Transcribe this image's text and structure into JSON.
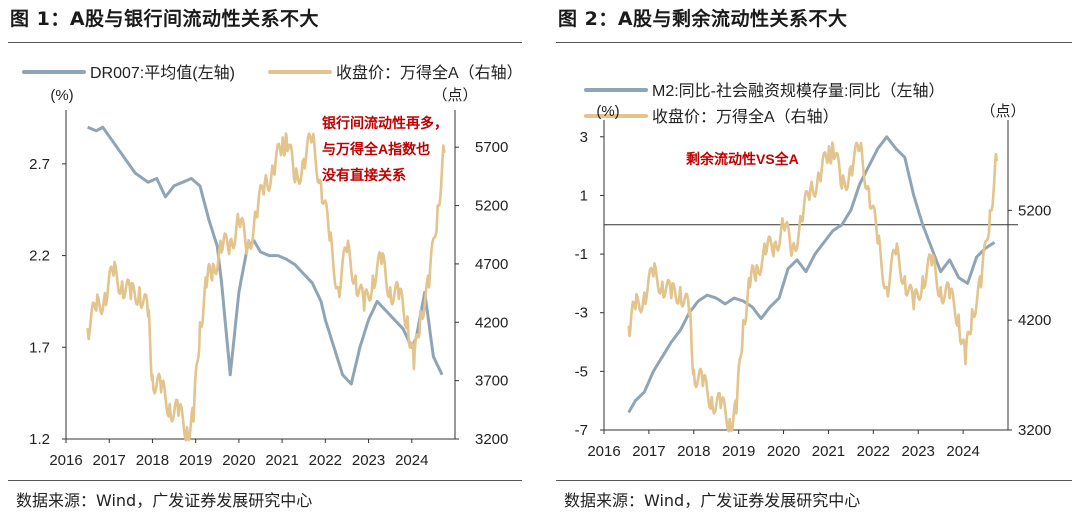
{
  "colors": {
    "blue": "#8FA5B5",
    "gold": "#E2C48C",
    "red": "#C00000",
    "axis": "#333333"
  },
  "chart_data": [
    {
      "type": "line",
      "title": "图 1：A股与银行间流动性关系不大",
      "source": "数据来源：Wind，广发证券发展研究中心",
      "annotation": "银行间流动性再多，与万得全A指数也没有直接关系",
      "annotation_lines": [
        "银行间流动性再多，",
        "与万得全A指数也",
        "没有直接关系"
      ],
      "left_unit": "(%)",
      "right_unit": "（点）",
      "xlim": [
        2016,
        2025
      ],
      "x_ticks": [
        "2016",
        "2017",
        "2018",
        "2019",
        "2020",
        "2021",
        "2022",
        "2023",
        "2024"
      ],
      "y_left": {
        "lim": [
          1.2,
          2.95
        ],
        "ticks": [
          "2.7",
          "2.2",
          "1.7",
          "1.2"
        ],
        "tick_values": [
          2.7,
          2.2,
          1.7,
          1.2
        ]
      },
      "y_right": {
        "lim": [
          3200,
          5950
        ],
        "ticks": [
          "5700",
          "5200",
          "4700",
          "4200",
          "3700",
          "3200"
        ],
        "tick_values": [
          5700,
          5200,
          4700,
          4200,
          3700,
          3200
        ]
      },
      "series": [
        {
          "name": "DR007:平均值(左轴)",
          "axis": "left",
          "color": "#8FA5B5",
          "x": [
            2016.5,
            2016.7,
            2016.85,
            2017.0,
            2017.3,
            2017.6,
            2017.9,
            2018.1,
            2018.3,
            2018.5,
            2018.7,
            2018.9,
            2019.1,
            2019.3,
            2019.5,
            2019.6,
            2019.8,
            2020.0,
            2020.2,
            2020.35,
            2020.5,
            2020.7,
            2020.9,
            2021.1,
            2021.3,
            2021.5,
            2021.7,
            2021.9,
            2022.0,
            2022.2,
            2022.4,
            2022.6,
            2022.8,
            2023.0,
            2023.2,
            2023.4,
            2023.6,
            2023.8,
            2024.0,
            2024.1,
            2024.3,
            2024.5,
            2024.7
          ],
          "values": [
            2.9,
            2.88,
            2.9,
            2.85,
            2.75,
            2.65,
            2.6,
            2.62,
            2.52,
            2.58,
            2.6,
            2.62,
            2.58,
            2.4,
            2.25,
            2.05,
            1.55,
            2.0,
            2.25,
            2.28,
            2.22,
            2.2,
            2.2,
            2.18,
            2.15,
            2.1,
            2.05,
            1.95,
            1.85,
            1.7,
            1.55,
            1.5,
            1.7,
            1.85,
            1.95,
            1.9,
            1.85,
            1.8,
            1.7,
            1.75,
            2.0,
            1.65,
            1.55
          ]
        },
        {
          "name": "收盘价：万得全A（右轴）",
          "axis": "right",
          "color": "#E2C48C",
          "x": [
            2016.5,
            2016.7,
            2016.9,
            2017.1,
            2017.3,
            2017.5,
            2017.7,
            2017.9,
            2018.0,
            2018.2,
            2018.4,
            2018.6,
            2018.8,
            2018.95,
            2019.1,
            2019.25,
            2019.4,
            2019.6,
            2019.8,
            2020.0,
            2020.2,
            2020.4,
            2020.6,
            2020.8,
            2021.0,
            2021.1,
            2021.3,
            2021.5,
            2021.7,
            2021.9,
            2022.1,
            2022.3,
            2022.5,
            2022.7,
            2022.9,
            2023.1,
            2023.3,
            2023.5,
            2023.7,
            2023.9,
            2024.05,
            2024.2,
            2024.4,
            2024.6,
            2024.75
          ],
          "values": [
            4150,
            4300,
            4450,
            4600,
            4550,
            4400,
            4500,
            4250,
            3750,
            3600,
            3500,
            3400,
            3300,
            3350,
            4200,
            4500,
            4700,
            4800,
            4900,
            5050,
            4850,
            5100,
            5400,
            5500,
            5700,
            5800,
            5400,
            5600,
            5750,
            5400,
            4900,
            4500,
            4800,
            4600,
            4300,
            4600,
            4700,
            4500,
            4400,
            4250,
            3800,
            4300,
            4500,
            5200,
            5650
          ]
        }
      ]
    },
    {
      "type": "line",
      "title": "图 2：A股与剩余流动性关系不大",
      "source": "数据来源：Wind，广发证券发展研究中心",
      "annotation": "剩余流动性VS全A",
      "annotation_lines": [
        "剩余流动性VS全A"
      ],
      "left_unit": "(%)",
      "right_unit": "（点）",
      "xlim": [
        2016,
        2025
      ],
      "x_ticks": [
        "2016",
        "2017",
        "2018",
        "2019",
        "2020",
        "2021",
        "2022",
        "2023",
        "2024"
      ],
      "y_left": {
        "lim": [
          -7,
          3.3
        ],
        "ticks": [
          "3",
          "1",
          "-1",
          "-3",
          "-5",
          "-7"
        ],
        "tick_values": [
          3,
          1,
          -1,
          -3,
          -5,
          -7
        ]
      },
      "y_right": {
        "lim": [
          3200,
          5950
        ],
        "ticks": [
          "5200",
          "4200",
          "3200"
        ],
        "tick_values": [
          5200,
          4200,
          3200
        ]
      },
      "zero_line": 0,
      "series": [
        {
          "name": "M2:同比-社会融资规模存量:同比（左轴）",
          "axis": "left",
          "color": "#8FA5B5",
          "x": [
            2016.55,
            2016.7,
            2016.9,
            2017.1,
            2017.3,
            2017.5,
            2017.7,
            2017.9,
            2018.1,
            2018.3,
            2018.5,
            2018.7,
            2018.9,
            2019.1,
            2019.3,
            2019.5,
            2019.7,
            2019.9,
            2020.1,
            2020.3,
            2020.5,
            2020.7,
            2020.9,
            2021.1,
            2021.3,
            2021.5,
            2021.7,
            2021.9,
            2022.1,
            2022.3,
            2022.5,
            2022.7,
            2022.9,
            2023.1,
            2023.3,
            2023.5,
            2023.7,
            2023.9,
            2024.1,
            2024.3,
            2024.5,
            2024.7
          ],
          "values": [
            -6.4,
            -6.0,
            -5.7,
            -5.0,
            -4.5,
            -4.0,
            -3.6,
            -3.0,
            -2.6,
            -2.4,
            -2.5,
            -2.7,
            -2.5,
            -2.6,
            -2.8,
            -3.2,
            -2.8,
            -2.5,
            -1.5,
            -1.2,
            -1.6,
            -1.0,
            -0.6,
            -0.2,
            0.0,
            0.5,
            1.4,
            2.0,
            2.6,
            3.0,
            2.6,
            2.3,
            1.0,
            0.0,
            -0.8,
            -1.6,
            -1.2,
            -1.8,
            -2.0,
            -1.1,
            -0.8,
            -0.6
          ]
        },
        {
          "name": "收盘价：万得全A（右轴）",
          "axis": "right",
          "color": "#E2C48C",
          "x": [
            2016.55,
            2016.7,
            2016.9,
            2017.1,
            2017.3,
            2017.5,
            2017.7,
            2017.9,
            2018.0,
            2018.2,
            2018.4,
            2018.6,
            2018.8,
            2018.95,
            2019.1,
            2019.25,
            2019.4,
            2019.6,
            2019.8,
            2020.0,
            2020.2,
            2020.4,
            2020.6,
            2020.8,
            2021.0,
            2021.1,
            2021.3,
            2021.5,
            2021.7,
            2021.9,
            2022.1,
            2022.3,
            2022.5,
            2022.7,
            2022.9,
            2023.1,
            2023.3,
            2023.5,
            2023.7,
            2023.9,
            2024.05,
            2024.2,
            2024.4,
            2024.6,
            2024.75
          ],
          "values": [
            4150,
            4300,
            4450,
            4600,
            4550,
            4400,
            4500,
            4250,
            3750,
            3600,
            3500,
            3400,
            3300,
            3350,
            4200,
            4500,
            4700,
            4800,
            4900,
            5050,
            4850,
            5100,
            5400,
            5500,
            5700,
            5800,
            5400,
            5600,
            5750,
            5400,
            4900,
            4500,
            4800,
            4600,
            4300,
            4600,
            4700,
            4500,
            4400,
            4250,
            3800,
            4300,
            4500,
            5200,
            5650
          ]
        }
      ]
    }
  ]
}
